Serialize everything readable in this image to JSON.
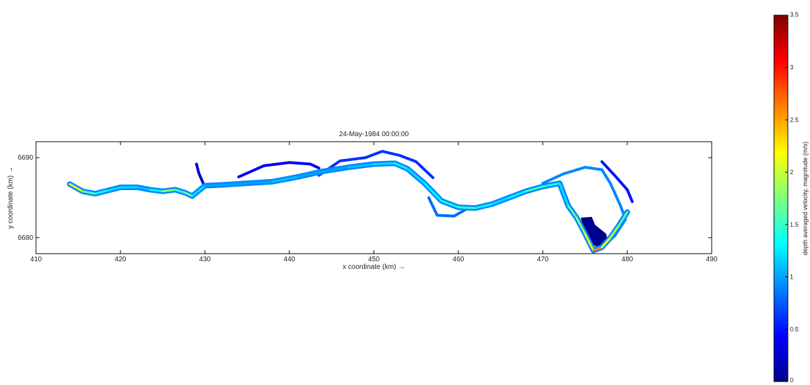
{
  "chart_data": [
    {
      "type": "heatmap",
      "title": "24-May-1984 00:00:00",
      "xlabel": "x coordinate (km) →",
      "ylabel": "y coordinate (km) →",
      "xlim": [
        410,
        490
      ],
      "ylim": [
        6678,
        6692
      ],
      "x_ticks": [
        {
          "value": 410,
          "label": "410"
        },
        {
          "value": 420,
          "label": "420"
        },
        {
          "value": 430,
          "label": "430"
        },
        {
          "value": 440,
          "label": "440"
        },
        {
          "value": 450,
          "label": "450"
        },
        {
          "value": 460,
          "label": "460"
        },
        {
          "value": 470,
          "label": "470"
        },
        {
          "value": 480,
          "label": "480"
        },
        {
          "value": 490,
          "label": "490"
        }
      ],
      "y_ticks": [
        {
          "value": 6680,
          "label": "6680"
        },
        {
          "value": 6690,
          "label": "6690"
        }
      ],
      "grid": false,
      "river_centerline": [
        [
          414.0,
          6686.7
        ],
        [
          415.5,
          6685.8
        ],
        [
          417.0,
          6685.5
        ],
        [
          418.5,
          6685.9
        ],
        [
          420.0,
          6686.3
        ],
        [
          422.0,
          6686.3
        ],
        [
          423.5,
          6686.0
        ],
        [
          425.0,
          6685.8
        ],
        [
          426.5,
          6686.0
        ],
        [
          427.7,
          6685.6
        ],
        [
          428.5,
          6685.2
        ],
        [
          430.0,
          6686.5
        ],
        [
          432.0,
          6686.6
        ],
        [
          435.0,
          6686.8
        ],
        [
          438.0,
          6687.0
        ],
        [
          441.0,
          6687.6
        ],
        [
          444.0,
          6688.3
        ],
        [
          447.0,
          6688.8
        ],
        [
          450.0,
          6689.2
        ],
        [
          452.5,
          6689.3
        ],
        [
          454.0,
          6688.6
        ],
        [
          456.0,
          6686.8
        ],
        [
          458.0,
          6684.6
        ],
        [
          460.0,
          6683.8
        ],
        [
          462.0,
          6683.7
        ],
        [
          464.0,
          6684.2
        ],
        [
          466.0,
          6685.0
        ],
        [
          468.0,
          6685.8
        ],
        [
          470.0,
          6686.4
        ],
        [
          472.0,
          6686.8
        ],
        [
          473.0,
          6684.0
        ],
        [
          474.0,
          6682.5
        ],
        [
          475.0,
          6680.5
        ],
        [
          476.0,
          6678.4
        ],
        [
          477.0,
          6678.8
        ],
        [
          478.0,
          6680.0
        ],
        [
          479.0,
          6681.5
        ],
        [
          480.0,
          6683.2
        ]
      ],
      "centerline_velocity": [
        2.2,
        1.6,
        1.4,
        1.2,
        1.2,
        1.1,
        1.3,
        1.8,
        1.5,
        1.7,
        1.2,
        1.0,
        1.0,
        1.0,
        1.1,
        1.0,
        1.0,
        1.1,
        1.2,
        1.3,
        1.2,
        1.3,
        1.4,
        1.5,
        1.3,
        1.2,
        1.3,
        1.5,
        1.4,
        1.2,
        1.6,
        1.8,
        2.1,
        2.6,
        2.2,
        1.9,
        1.6,
        1.3
      ],
      "side_channels": [
        {
          "points": [
            [
              443.5,
              6687.8
            ],
            [
              446.0,
              6689.6
            ],
            [
              449.0,
              6690.0
            ],
            [
              451.0,
              6690.8
            ],
            [
              453.0,
              6690.3
            ],
            [
              455.0,
              6689.5
            ],
            [
              457.0,
              6687.5
            ]
          ],
          "velocity": 0.6
        },
        {
          "points": [
            [
              434.0,
              6687.6
            ],
            [
              437.0,
              6689.0
            ],
            [
              440.0,
              6689.4
            ],
            [
              442.5,
              6689.2
            ],
            [
              443.5,
              6688.7
            ]
          ],
          "velocity": 0.4
        },
        {
          "points": [
            [
              429.0,
              6689.2
            ],
            [
              429.3,
              6688.0
            ],
            [
              429.8,
              6686.8
            ]
          ],
          "velocity": 0.3
        },
        {
          "points": [
            [
              456.5,
              6685.0
            ],
            [
              457.5,
              6682.8
            ],
            [
              459.5,
              6682.7
            ],
            [
              461.0,
              6683.6
            ]
          ],
          "velocity": 0.8
        },
        {
          "points": [
            [
              470.0,
              6686.8
            ],
            [
              472.5,
              6688.0
            ],
            [
              475.0,
              6688.8
            ],
            [
              477.0,
              6688.5
            ],
            [
              478.0,
              6686.8
            ],
            [
              479.2,
              6684.0
            ],
            [
              479.8,
              6682.3
            ],
            [
              478.5,
              6680.2
            ],
            [
              476.8,
              6678.6
            ]
          ],
          "velocity": 0.9
        },
        {
          "points": [
            [
              477.0,
              6689.5
            ],
            [
              478.5,
              6687.8
            ],
            [
              480.0,
              6686.0
            ],
            [
              480.6,
              6684.5
            ]
          ],
          "velocity": 0.5
        }
      ],
      "stagnant_zone": {
        "points": [
          [
            474.5,
            6682.5
          ],
          [
            475.8,
            6682.6
          ],
          [
            476.2,
            6681.6
          ],
          [
            477.5,
            6680.5
          ],
          [
            477.8,
            6679.2
          ],
          [
            476.5,
            6678.8
          ],
          [
            475.2,
            6679.5
          ],
          [
            474.8,
            6681.0
          ]
        ],
        "velocity": 0.05
      },
      "colorbar": {
        "label": "depth averaged velocity, magnitude (m/s)",
        "min": 0,
        "max": 3.5,
        "colormap": "jet",
        "ticks": [
          {
            "value": 0,
            "label": "0"
          },
          {
            "value": 0.5,
            "label": "0.5"
          },
          {
            "value": 1,
            "label": "1"
          },
          {
            "value": 1.5,
            "label": "1.5"
          },
          {
            "value": 2,
            "label": "2"
          },
          {
            "value": 2.5,
            "label": "2.5"
          },
          {
            "value": 3,
            "label": "3"
          },
          {
            "value": 3.5,
            "label": "3.5"
          }
        ]
      }
    }
  ]
}
